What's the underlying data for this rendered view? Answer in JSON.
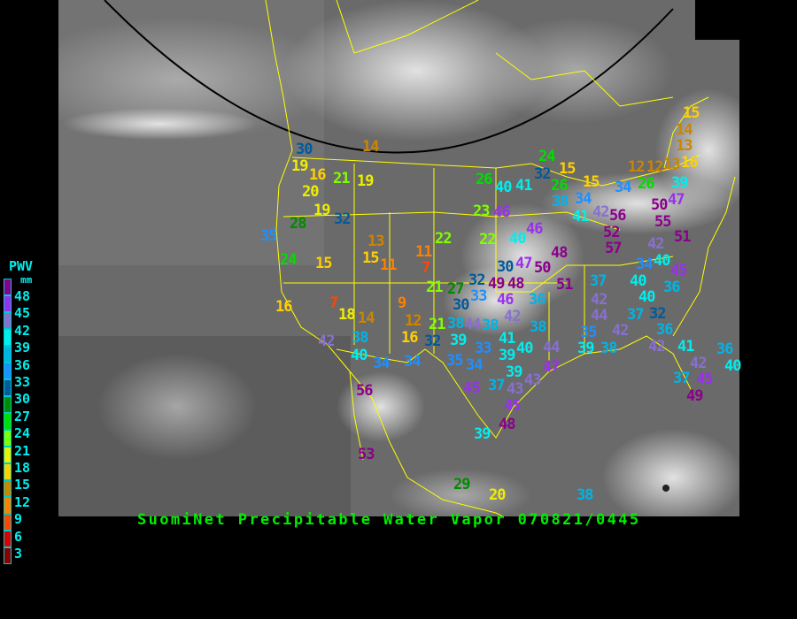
{
  "title": "SuomiNet Precipitable Water Vapor 070821/0445",
  "legend": {
    "title": "PWV",
    "unit": "mm",
    "labels": [
      "48",
      "45",
      "42",
      "39",
      "36",
      "33",
      "30",
      "27",
      "24",
      "21",
      "18",
      "15",
      "12",
      "9",
      "6",
      "3"
    ],
    "colors": [
      "#8b008b",
      "#9a30ee",
      "#8870d0",
      "#00eeee",
      "#00b4e6",
      "#1e90ff",
      "#005a9c",
      "#008b00",
      "#00dd00",
      "#80ff00",
      "#eeee00",
      "#ffd000",
      "#cd8500",
      "#ff8000",
      "#ff4500",
      "#dd0000",
      "#8b0000"
    ]
  },
  "map": {
    "background": "satellite-infrared-grayscale",
    "border_color": "#ffff00",
    "arc_color": "#000000"
  },
  "stations": [
    30,
    19,
    20,
    16,
    21,
    19,
    14,
    19,
    32,
    28,
    35,
    24,
    15,
    13,
    15,
    11,
    11,
    7,
    22,
    22,
    23,
    46,
    26,
    40,
    41,
    24,
    32,
    15,
    26,
    15,
    38,
    34,
    41,
    42,
    56,
    52,
    57,
    46,
    40,
    48,
    47,
    50,
    30,
    32,
    49,
    48,
    21,
    27,
    30,
    33,
    46,
    36,
    51,
    37,
    42,
    40,
    40,
    36,
    37,
    32,
    44,
    42,
    36,
    35,
    39,
    38,
    42,
    41,
    42,
    36,
    37,
    45,
    49,
    40,
    45,
    34,
    42,
    40,
    51,
    50,
    55,
    47,
    39,
    26,
    34,
    12,
    12,
    13,
    16,
    13,
    14,
    15,
    16,
    7,
    18,
    14,
    9,
    12,
    16,
    21,
    32,
    38,
    44,
    38,
    42,
    41,
    39,
    33,
    35,
    34,
    39,
    39,
    43,
    47,
    44,
    40,
    38,
    45,
    37,
    43,
    45,
    48,
    39,
    42,
    38,
    40,
    34,
    34,
    56,
    53,
    29,
    20,
    38
  ]
}
